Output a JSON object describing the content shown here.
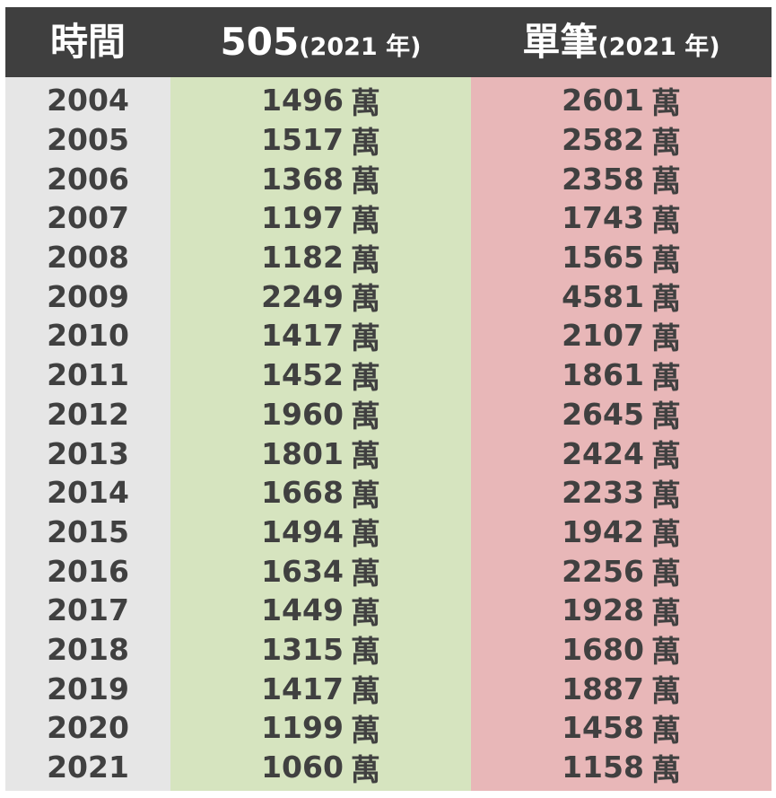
{
  "chart_data": {
    "type": "table",
    "columns": [
      {
        "key": "year",
        "label": "時間",
        "sub": ""
      },
      {
        "key": "g505",
        "label": "505",
        "sub": "(2021 年)"
      },
      {
        "key": "single",
        "label": "單筆",
        "sub": "(2021 年)"
      }
    ],
    "unit": "萬",
    "rows": [
      {
        "year": "2004",
        "g505": "1496",
        "single": "2601"
      },
      {
        "year": "2005",
        "g505": "1517",
        "single": "2582"
      },
      {
        "year": "2006",
        "g505": "1368",
        "single": "2358"
      },
      {
        "year": "2007",
        "g505": "1197",
        "single": "1743"
      },
      {
        "year": "2008",
        "g505": "1182",
        "single": "1565"
      },
      {
        "year": "2009",
        "g505": "2249",
        "single": "4581"
      },
      {
        "year": "2010",
        "g505": "1417",
        "single": "2107"
      },
      {
        "year": "2011",
        "g505": "1452",
        "single": "1861"
      },
      {
        "year": "2012",
        "g505": "1960",
        "single": "2645"
      },
      {
        "year": "2013",
        "g505": "1801",
        "single": "2424"
      },
      {
        "year": "2014",
        "g505": "1668",
        "single": "2233"
      },
      {
        "year": "2015",
        "g505": "1494",
        "single": "1942"
      },
      {
        "year": "2016",
        "g505": "1634",
        "single": "2256"
      },
      {
        "year": "2017",
        "g505": "1449",
        "single": "1928"
      },
      {
        "year": "2018",
        "g505": "1315",
        "single": "1680"
      },
      {
        "year": "2019",
        "g505": "1417",
        "single": "1887"
      },
      {
        "year": "2020",
        "g505": "1199",
        "single": "1458"
      },
      {
        "year": "2021",
        "g505": "1060",
        "single": "1158"
      }
    ]
  },
  "colors": {
    "header_bg": "#3f3f3f",
    "header_text": "#ffffff",
    "year_col_bg": "#e6e6e6",
    "g505_col_bg": "#d6e4bf",
    "single_col_bg": "#e8b7b8",
    "body_text": "#404040"
  }
}
